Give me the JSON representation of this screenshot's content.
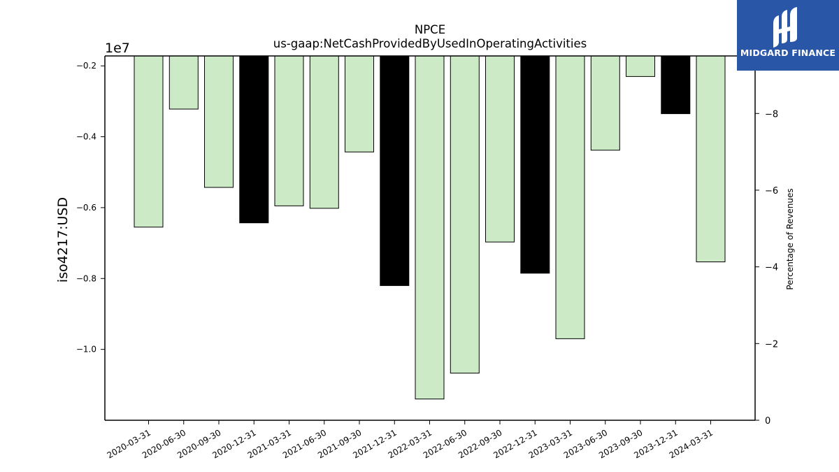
{
  "chart_data": {
    "type": "bar",
    "title": "NPCE",
    "subtitle": "us-gaap:NetCashProvidedByUsedInOperatingActivities",
    "ylabel": "iso4217:USD",
    "y2label": "Percentage of Revenues",
    "offset_label": "1e7",
    "ylim": [
      -1.2,
      -0.172
    ],
    "y2lim": [
      0,
      -9.5
    ],
    "yticks": [
      "-0.2",
      "-0.4",
      "-0.6",
      "-0.8",
      "-1.0"
    ],
    "y2ticks": [
      "-8",
      "-6",
      "-4",
      "-2",
      "0"
    ],
    "categories": [
      "2020-03-31",
      "2020-06-30",
      "2020-09-30",
      "2020-12-31",
      "2021-03-31",
      "2021-06-30",
      "2021-09-30",
      "2021-12-31",
      "2022-03-31",
      "2022-06-30",
      "2022-09-30",
      "2022-12-31",
      "2023-03-31",
      "2023-06-30",
      "2023-09-30",
      "2023-12-31",
      "2024-03-31"
    ],
    "values": [
      -0.655,
      -0.322,
      -0.543,
      -0.643,
      -0.595,
      -0.602,
      -0.443,
      -0.82,
      -1.14,
      -1.067,
      -0.697,
      -0.785,
      -0.97,
      -0.438,
      -0.23,
      -0.335,
      -0.753
    ],
    "annual": [
      false,
      false,
      false,
      true,
      false,
      false,
      false,
      true,
      false,
      false,
      false,
      true,
      false,
      false,
      false,
      true,
      false
    ],
    "colors": {
      "quarter": "#cdeac6",
      "annual": "#000000",
      "edge": "#000000"
    }
  },
  "logo": {
    "text": "MIDGARD FINANCE",
    "bg": "#2a56a8"
  }
}
